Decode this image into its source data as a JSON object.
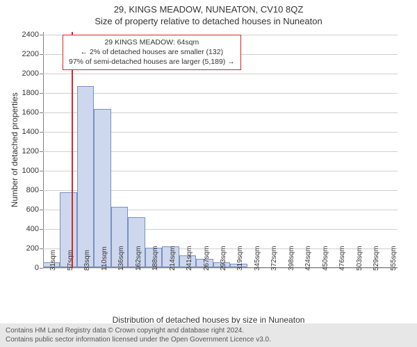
{
  "title_top": "29, KINGS MEADOW, NUNEATON, CV10 8QZ",
  "title_sub": "Size of property relative to detached houses in Nuneaton",
  "ylabel": "Number of detached properties",
  "xlabel": "Distribution of detached houses by size in Nuneaton",
  "footer_line1": "Contains HM Land Registry data © Crown copyright and database right 2024.",
  "footer_line2": "Contains public sector information licensed under the Open Government Licence v3.0.",
  "annotation": {
    "line1": "29 KINGS MEADOW: 64sqm",
    "line2": "← 2% of detached houses are smaller (132)",
    "line3": "97% of semi-detached houses are larger (5,189) →"
  },
  "chart": {
    "type": "histogram",
    "background_color": "#ffffff",
    "grid_color_major": "#7f7f7f",
    "grid_color_minor": "#cfcfcf",
    "bar_fill": "#cdd8ee",
    "bar_stroke": "#7a8fbf",
    "marker_color": "#d62627",
    "marker_x": 64,
    "ylim": [
      0,
      2430
    ],
    "ytick_step": 200,
    "ytick_max": 2400,
    "xlim_min": 20,
    "xlim_max": 568,
    "bin_width": 26.3,
    "xtick_labels": [
      "31sqm",
      "57sqm",
      "83sqm",
      "110sqm",
      "136sqm",
      "162sqm",
      "188sqm",
      "214sqm",
      "241sqm",
      "267sqm",
      "293sqm",
      "319sqm",
      "345sqm",
      "372sqm",
      "398sqm",
      "424sqm",
      "450sqm",
      "476sqm",
      "503sqm",
      "529sqm",
      "555sqm"
    ],
    "bars": [
      {
        "count": 60
      },
      {
        "count": 780
      },
      {
        "count": 1870
      },
      {
        "count": 1640
      },
      {
        "count": 630
      },
      {
        "count": 520
      },
      {
        "count": 210
      },
      {
        "count": 220
      },
      {
        "count": 130
      },
      {
        "count": 90
      },
      {
        "count": 60
      },
      {
        "count": 40
      },
      {
        "count": 0
      },
      {
        "count": 0
      },
      {
        "count": 0
      },
      {
        "count": 0
      },
      {
        "count": 0
      },
      {
        "count": 0
      },
      {
        "count": 0
      },
      {
        "count": 0
      },
      {
        "count": 0
      }
    ],
    "title_fontsize": 13,
    "label_fontsize": 12,
    "tick_fontsize": 11,
    "annotation_fontsize": 10.5
  }
}
